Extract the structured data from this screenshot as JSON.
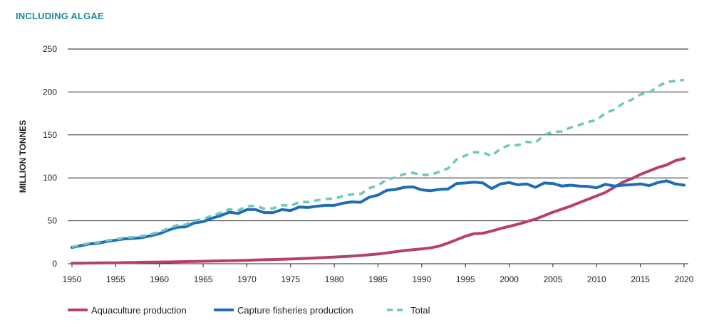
{
  "chart_data": {
    "type": "line",
    "subtitle": "INCLUDING ALGAE",
    "ylabel": "MILLION TONNES",
    "xlabel": "",
    "xlim": [
      1950,
      2020
    ],
    "ylim": [
      0,
      250
    ],
    "grid": "horizontal",
    "legend_position": "bottom",
    "x_ticks": [
      "1950",
      "1955",
      "1960",
      "1965",
      "1970",
      "1975",
      "1980",
      "1985",
      "1990",
      "1995",
      "2000",
      "2005",
      "2010",
      "2015",
      "2020"
    ],
    "y_ticks": [
      "0",
      "50",
      "100",
      "150",
      "200",
      "250"
    ],
    "x": [
      1950,
      1951,
      1952,
      1953,
      1954,
      1955,
      1956,
      1957,
      1958,
      1959,
      1960,
      1961,
      1962,
      1963,
      1964,
      1965,
      1966,
      1967,
      1968,
      1969,
      1970,
      1971,
      1972,
      1973,
      1974,
      1975,
      1976,
      1977,
      1978,
      1979,
      1980,
      1981,
      1982,
      1983,
      1984,
      1985,
      1986,
      1987,
      1988,
      1989,
      1990,
      1991,
      1992,
      1993,
      1994,
      1995,
      1996,
      1997,
      1998,
      1999,
      2000,
      2001,
      2002,
      2003,
      2004,
      2005,
      2006,
      2007,
      2008,
      2009,
      2010,
      2011,
      2012,
      2013,
      2014,
      2015,
      2016,
      2017,
      2018,
      2019,
      2020
    ],
    "series": [
      {
        "name": "Aquaculture production",
        "color": "#b5406d",
        "style": "solid",
        "values": [
          0.6,
          0.7,
          0.8,
          0.9,
          1.0,
          1.1,
          1.3,
          1.5,
          1.7,
          1.8,
          2.0,
          2.1,
          2.3,
          2.5,
          2.7,
          2.9,
          3.1,
          3.3,
          3.5,
          3.7,
          4.0,
          4.3,
          4.6,
          4.9,
          5.2,
          5.5,
          5.9,
          6.3,
          6.8,
          7.3,
          7.8,
          8.3,
          8.9,
          9.6,
          10.4,
          11.3,
          12.6,
          14.0,
          15.3,
          16.4,
          17.3,
          18.5,
          20.5,
          24.0,
          28.0,
          32.0,
          35.0,
          35.5,
          38.0,
          41.0,
          43.5,
          46.0,
          49.0,
          52.0,
          56.0,
          60.0,
          63.5,
          67.0,
          71.0,
          75.0,
          79.0,
          83.0,
          89.0,
          95.0,
          99.0,
          104.0,
          108.0,
          112.0,
          115.0,
          120.0,
          122.6
        ]
      },
      {
        "name": "Capture fisheries production",
        "color": "#1f6db5",
        "style": "solid",
        "values": [
          19.0,
          21.0,
          23.0,
          24.0,
          26.0,
          27.5,
          29.0,
          29.5,
          30.5,
          32.5,
          35.0,
          39.0,
          42.5,
          43.0,
          47.5,
          49.0,
          53.0,
          56.0,
          60.0,
          58.5,
          63.0,
          63.0,
          59.5,
          59.5,
          63.0,
          62.0,
          66.0,
          65.5,
          67.0,
          68.0,
          68.0,
          70.5,
          72.0,
          71.5,
          77.5,
          80.0,
          85.5,
          86.5,
          89.0,
          89.5,
          86.0,
          85.0,
          86.5,
          87.0,
          93.5,
          94.0,
          95.0,
          94.0,
          87.5,
          93.0,
          94.5,
          92.0,
          93.0,
          89.0,
          94.0,
          93.5,
          90.5,
          91.5,
          90.5,
          90.0,
          88.5,
          92.5,
          90.5,
          91.5,
          92.0,
          93.0,
          91.0,
          94.5,
          96.5,
          93.0,
          91.5
        ]
      },
      {
        "name": "Total",
        "color": "#6cc7bd",
        "style": "dashed",
        "values": [
          19.6,
          21.7,
          23.8,
          24.9,
          27.0,
          28.6,
          30.3,
          31.0,
          32.2,
          34.3,
          37.0,
          41.1,
          44.8,
          45.5,
          50.2,
          51.9,
          56.1,
          59.3,
          63.5,
          62.2,
          67.0,
          67.3,
          64.1,
          64.4,
          68.2,
          67.5,
          71.9,
          71.8,
          73.8,
          75.3,
          75.8,
          78.8,
          80.9,
          81.1,
          87.9,
          91.3,
          98.1,
          100.5,
          104.3,
          105.9,
          103.3,
          103.5,
          107.0,
          111.0,
          121.5,
          126.0,
          130.0,
          129.5,
          125.5,
          134.0,
          138.0,
          138.0,
          142.0,
          141.0,
          150.0,
          153.5,
          154.0,
          158.5,
          161.5,
          165.0,
          167.5,
          175.5,
          179.5,
          186.5,
          191.0,
          197.0,
          199.0,
          206.5,
          211.5,
          213.0,
          214.1
        ]
      }
    ]
  }
}
